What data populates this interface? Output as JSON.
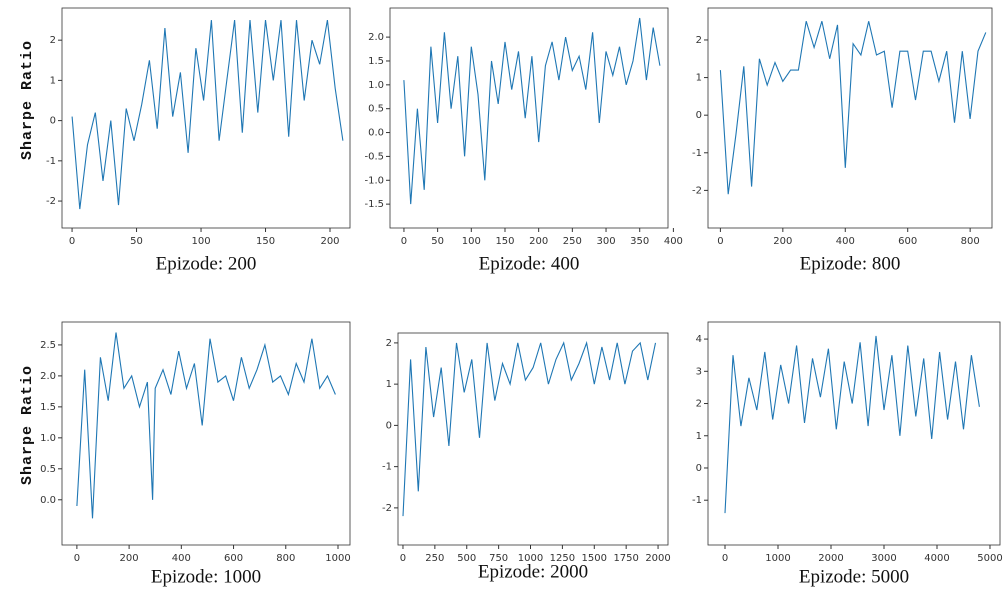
{
  "chart_data": [
    {
      "type": "line",
      "xlabel": "Epizode: 200",
      "ylabel": "Sharpe Ratio",
      "xlim": [
        -7.8,
        215.5
      ],
      "ylim": [
        -2.67,
        2.8
      ],
      "xticks": [
        0,
        50,
        100,
        150,
        200
      ],
      "yticks": [
        -2,
        -1,
        0,
        1,
        2
      ],
      "x": [
        0,
        6,
        12,
        18,
        24,
        30,
        36,
        42,
        48,
        54,
        60,
        66,
        72,
        78,
        84,
        90,
        96,
        102,
        108,
        114,
        120,
        126,
        132,
        138,
        144,
        150,
        156,
        162,
        168,
        174,
        180,
        186,
        192,
        198,
        204,
        210
      ],
      "series": [
        {
          "color": "#1f77b4",
          "values": [
            0.1,
            -2.2,
            -0.6,
            0.2,
            -1.5,
            0,
            -2.1,
            0.3,
            -0.5,
            0.4,
            1.5,
            -0.2,
            2.3,
            0.1,
            1.2,
            -0.8,
            1.8,
            0.5,
            2.5,
            -0.5,
            1.0,
            2.5,
            -0.3,
            2.5,
            0.2,
            2.5,
            1.0,
            2.5,
            -0.4,
            2.5,
            0.5,
            2.0,
            1.4,
            2.5,
            0.8,
            -0.5
          ]
        }
      ]
    },
    {
      "type": "line",
      "xlabel": "Epizode: 400",
      "xlim": [
        -20.7,
        392
      ],
      "ylim": [
        -2.0,
        2.61
      ],
      "xticks": [
        0,
        50,
        100,
        150,
        200,
        250,
        300,
        350,
        400
      ],
      "yticks": [
        -1.5,
        {
          "value": -1.0,
          "label": "-1.0"
        },
        -0.5,
        {
          "value": 0,
          "label": "0.0"
        },
        0.5,
        {
          "value": 1.0,
          "label": "1.0"
        },
        1.5,
        {
          "value": 2.0,
          "label": "2.0"
        }
      ],
      "x": [
        0,
        10,
        20,
        30,
        40,
        50,
        60,
        70,
        80,
        90,
        100,
        110,
        120,
        130,
        140,
        150,
        160,
        170,
        180,
        190,
        200,
        210,
        220,
        230,
        240,
        250,
        260,
        270,
        280,
        290,
        300,
        310,
        320,
        330,
        340,
        350,
        360,
        370,
        380
      ],
      "series": [
        {
          "color": "#1f77b4",
          "values": [
            1.1,
            -1.5,
            0.5,
            -1.2,
            1.8,
            0.2,
            2.1,
            0.5,
            1.6,
            -0.5,
            1.8,
            0.8,
            -1.0,
            1.5,
            0.6,
            1.9,
            0.9,
            1.7,
            0.3,
            1.6,
            -0.2,
            1.4,
            1.9,
            1.1,
            2.0,
            1.3,
            1.6,
            0.9,
            2.1,
            0.2,
            1.7,
            1.2,
            1.8,
            1.0,
            1.5,
            2.4,
            1.1,
            2.2,
            1.4
          ]
        }
      ]
    },
    {
      "type": "line",
      "xlabel": "Epizode: 800",
      "xlim": [
        -39.7,
        870
      ],
      "ylim": [
        -3.0,
        2.85
      ],
      "xticks": [
        0,
        200,
        400,
        600,
        800
      ],
      "yticks": [
        -2,
        -1,
        0,
        1,
        2
      ],
      "x": [
        0,
        25,
        50,
        75,
        100,
        125,
        150,
        175,
        200,
        225,
        250,
        275,
        300,
        325,
        350,
        375,
        400,
        425,
        450,
        475,
        500,
        525,
        550,
        575,
        600,
        625,
        650,
        675,
        700,
        725,
        750,
        775,
        800,
        825,
        850
      ],
      "series": [
        {
          "color": "#1f77b4",
          "values": [
            1.2,
            -2.1,
            -0.5,
            1.3,
            -1.9,
            1.5,
            0.8,
            1.4,
            0.9,
            1.2,
            1.2,
            2.5,
            1.8,
            2.5,
            1.5,
            2.4,
            -1.4,
            1.9,
            1.6,
            2.5,
            1.6,
            1.7,
            0.2,
            1.7,
            1.7,
            0.4,
            1.7,
            1.7,
            0.9,
            1.7,
            -0.2,
            1.7,
            -0.1,
            1.7,
            2.2
          ]
        }
      ]
    },
    {
      "type": "line",
      "xlabel": "Epizode: 1000",
      "ylabel": "Sharpe Ratio",
      "xlim": [
        -57,
        1046
      ],
      "ylim": [
        -0.73,
        2.87
      ],
      "xticks": [
        0,
        200,
        400,
        600,
        800,
        1000
      ],
      "yticks": [
        {
          "value": 0,
          "label": "0.0"
        },
        0.5,
        {
          "value": 1.0,
          "label": "1.0"
        },
        1.5,
        {
          "value": 2.0,
          "label": "2.0"
        },
        2.5
      ],
      "x": [
        0,
        30,
        60,
        90,
        120,
        150,
        180,
        210,
        240,
        270,
        290,
        300,
        330,
        360,
        390,
        420,
        450,
        480,
        510,
        540,
        570,
        600,
        630,
        660,
        690,
        720,
        750,
        780,
        810,
        840,
        870,
        900,
        930,
        960,
        990
      ],
      "series": [
        {
          "color": "#1f77b4",
          "values": [
            -0.1,
            2.1,
            -0.3,
            2.3,
            1.6,
            2.7,
            1.8,
            2.0,
            1.5,
            1.9,
            0.0,
            1.8,
            2.1,
            1.7,
            2.4,
            1.8,
            2.2,
            1.2,
            2.6,
            1.9,
            2.0,
            1.6,
            2.3,
            1.8,
            2.1,
            2.5,
            1.9,
            2.0,
            1.7,
            2.2,
            1.9,
            2.6,
            1.8,
            2.0,
            1.7
          ]
        }
      ]
    },
    {
      "type": "line",
      "xlabel": "Epizode: 2000",
      "xlim": [
        -39,
        2078
      ],
      "ylim": [
        -2.9,
        2.24
      ],
      "xticks": [
        0,
        250,
        500,
        750,
        1000,
        1250,
        1500,
        1750,
        2000
      ],
      "yticks": [
        -2,
        -1,
        0,
        1,
        2
      ],
      "x": [
        0,
        60,
        120,
        180,
        240,
        300,
        360,
        420,
        480,
        540,
        600,
        660,
        720,
        780,
        840,
        900,
        960,
        1020,
        1080,
        1140,
        1200,
        1260,
        1320,
        1380,
        1440,
        1500,
        1560,
        1620,
        1680,
        1740,
        1800,
        1860,
        1920,
        1980
      ],
      "series": [
        {
          "color": "#1f77b4",
          "values": [
            -2.2,
            1.6,
            -1.6,
            1.9,
            0.2,
            1.4,
            -0.5,
            2.0,
            0.8,
            1.6,
            -0.3,
            2.0,
            0.6,
            1.5,
            1.0,
            2.0,
            1.1,
            1.4,
            2.0,
            1.0,
            1.6,
            2.0,
            1.1,
            1.5,
            2.0,
            1.0,
            1.9,
            1.1,
            2.0,
            1.0,
            1.8,
            2.0,
            1.1,
            2.0
          ]
        }
      ]
    },
    {
      "type": "line",
      "xlabel": "Epizode: 5000",
      "xlim": [
        -321,
        5189
      ],
      "ylim": [
        -2.39,
        4.53
      ],
      "xticks": [
        0,
        1000,
        2000,
        3000,
        4000,
        5000
      ],
      "yticks": [
        -1,
        0,
        1,
        2,
        3,
        4
      ],
      "x": [
        0,
        150,
        300,
        450,
        600,
        750,
        900,
        1050,
        1200,
        1350,
        1500,
        1650,
        1800,
        1950,
        2100,
        2250,
        2400,
        2550,
        2700,
        2850,
        3000,
        3150,
        3300,
        3450,
        3600,
        3750,
        3900,
        4050,
        4200,
        4350,
        4500,
        4650,
        4800
      ],
      "series": [
        {
          "color": "#1f77b4",
          "values": [
            -1.4,
            3.5,
            1.3,
            2.8,
            1.8,
            3.6,
            1.5,
            3.2,
            2.0,
            3.8,
            1.4,
            3.4,
            2.2,
            3.7,
            1.2,
            3.3,
            2.0,
            3.9,
            1.3,
            4.1,
            1.8,
            3.5,
            1.0,
            3.8,
            1.6,
            3.4,
            0.9,
            3.6,
            1.5,
            3.3,
            1.2,
            3.5,
            1.9
          ]
        }
      ]
    }
  ]
}
